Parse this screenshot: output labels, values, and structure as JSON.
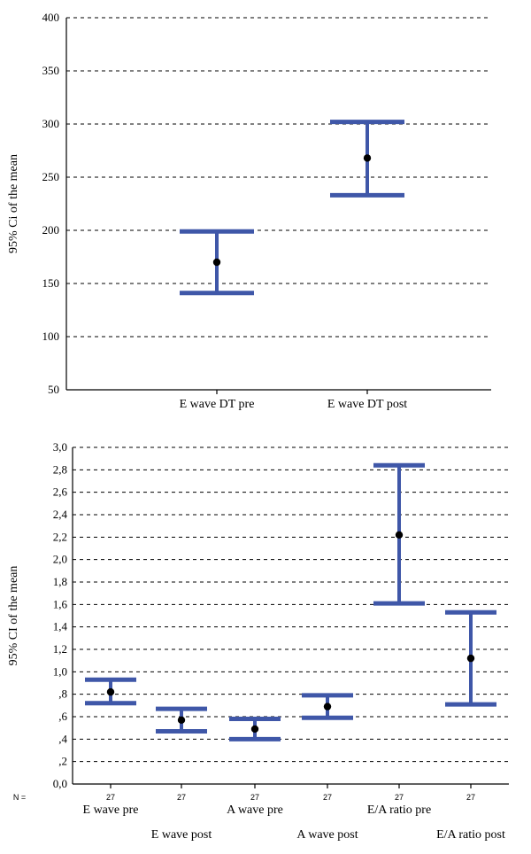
{
  "chart_data": [
    {
      "type": "errorbar",
      "ylabel": "95% Ci of the mean",
      "ylim": [
        50,
        400
      ],
      "yticks": [
        "400",
        "350",
        "300",
        "250",
        "200",
        "150",
        "100",
        "50"
      ],
      "ytick_values": [
        400,
        350,
        300,
        250,
        200,
        150,
        100,
        50
      ],
      "categories": [
        "E wave DT pre",
        "E wave DT post"
      ],
      "means": [
        170,
        268
      ],
      "lower": [
        141,
        233
      ],
      "upper": [
        199,
        302
      ],
      "color": "#3f57a8"
    },
    {
      "type": "errorbar",
      "ylabel": "95% CI of the mean",
      "ylim": [
        0,
        3.0
      ],
      "yticks": [
        "3,0",
        "2,8",
        "2,6",
        "2,4",
        "2,2",
        "2,0",
        "1,8",
        "1,6",
        "1,4",
        "1,2",
        "1,0",
        ",8",
        ",6",
        ",4",
        ",2",
        "0,0"
      ],
      "ytick_values": [
        3.0,
        2.8,
        2.6,
        2.4,
        2.2,
        2.0,
        1.8,
        1.6,
        1.4,
        1.2,
        1.0,
        0.8,
        0.6,
        0.4,
        0.2,
        0.0
      ],
      "categories": [
        "E wave pre",
        "E wave post",
        "A wave pre",
        "A wave post",
        "E/A ratio pre",
        "E/A ratio post"
      ],
      "n_label": "N =",
      "n_values": [
        "27",
        "27",
        "27",
        "27",
        "27",
        "27"
      ],
      "means": [
        0.82,
        0.57,
        0.49,
        0.69,
        2.22,
        1.12
      ],
      "lower": [
        0.72,
        0.47,
        0.4,
        0.59,
        1.61,
        0.71
      ],
      "upper": [
        0.93,
        0.67,
        0.58,
        0.79,
        2.84,
        1.53
      ],
      "color": "#3f57a8"
    }
  ]
}
